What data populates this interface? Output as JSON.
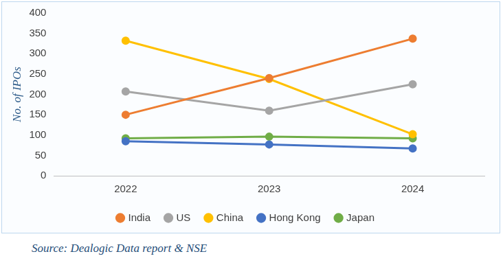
{
  "chart_data": {
    "type": "line",
    "y_label": "No. of IPOs",
    "source": "Source: Dealogic Data report & NSE",
    "categories": [
      "2022",
      "2023",
      "2024"
    ],
    "series": [
      {
        "name": "India",
        "color": "#ed7d31",
        "values": [
          150,
          240,
          337
        ]
      },
      {
        "name": "US",
        "color": "#a5a5a5",
        "values": [
          207,
          160,
          225
        ]
      },
      {
        "name": "China",
        "color": "#ffc000",
        "values": [
          332,
          238,
          102
        ]
      },
      {
        "name": "Hong Kong",
        "color": "#4472c4",
        "values": [
          85,
          77,
          67
        ]
      },
      {
        "name": "Japan",
        "color": "#70ad47",
        "values": [
          92,
          96,
          92
        ]
      }
    ],
    "ylim": [
      0,
      400
    ],
    "yticks": [
      0,
      50,
      100,
      150,
      200,
      250,
      300,
      350,
      400
    ],
    "grid": false,
    "legend": "bottom",
    "marker": "circle",
    "line_style": "solid"
  }
}
